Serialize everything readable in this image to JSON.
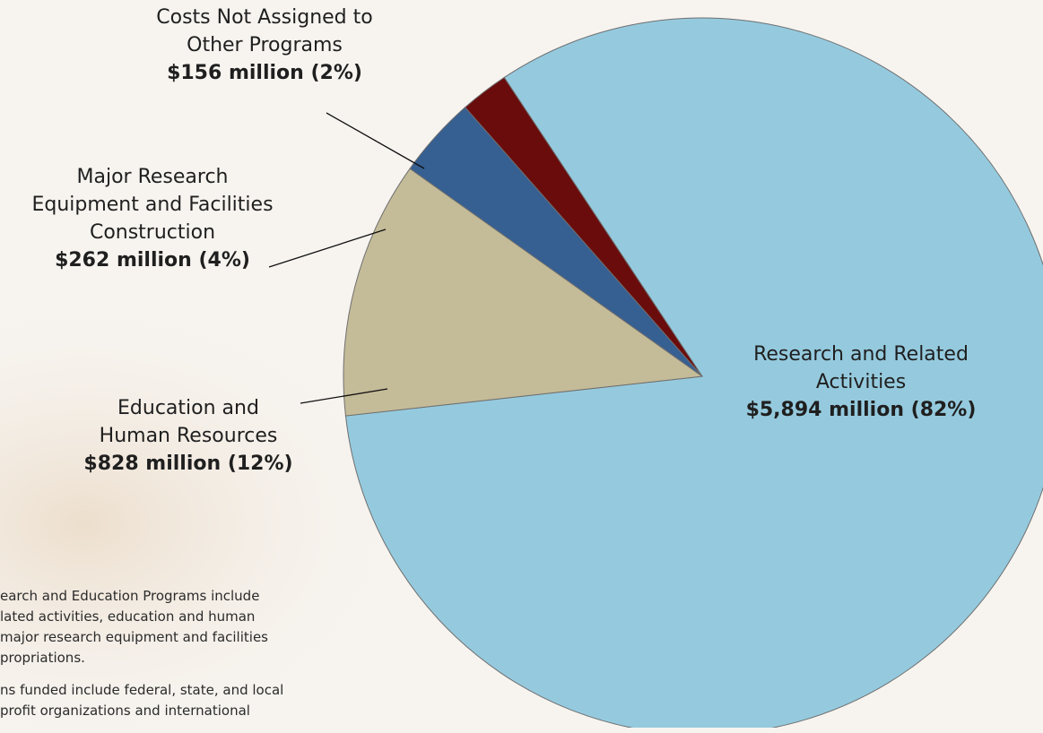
{
  "chart_data": {
    "type": "pie",
    "slices": [
      {
        "name_lines": [
          "Research and Related",
          "Activities"
        ],
        "value_label": "$5,894 million (82%)",
        "value": 5894,
        "percent": 82,
        "color": "#95cade"
      },
      {
        "name_lines": [
          "Education and",
          "Human Resources"
        ],
        "value_label": "$828 million (12%)",
        "value": 828,
        "percent": 12,
        "color": "#c4bb98"
      },
      {
        "name_lines": [
          "Major Research",
          "Equipment and Facilities",
          "Construction"
        ],
        "value_label": "$262 million (4%)",
        "value": 262,
        "percent": 4,
        "color": "#365f92"
      },
      {
        "name_lines": [
          "Costs Not Assigned to",
          "Other Programs"
        ],
        "value_label": "$156 million (2%)",
        "value": 156,
        "percent": 2,
        "color": "#6a0c0c"
      }
    ],
    "legend": "none"
  },
  "footnote": {
    "lines_1": [
      "earch and Education Programs include",
      "lated activities, education and human",
      "major research equipment and facilities",
      "propriations."
    ],
    "lines_2": [
      "ns funded include federal, state, and local",
      "profit organizations and international"
    ]
  }
}
